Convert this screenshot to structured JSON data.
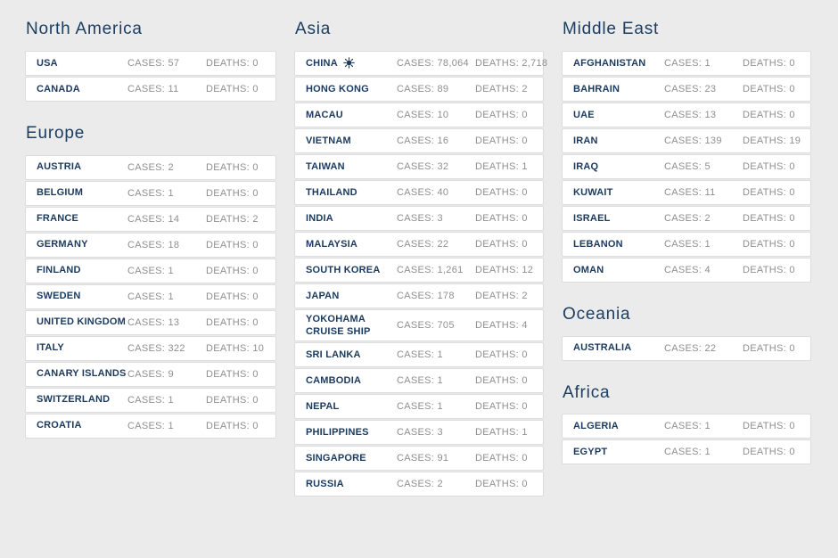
{
  "labels": {
    "cases": "CASES:",
    "deaths": "DEATHS:"
  },
  "colors": {
    "page_bg": "#ebebeb",
    "card_bg": "#ffffff",
    "card_border": "#dcdcdc",
    "navy_text": "#1b3a5e",
    "header_text": "#1d3e61",
    "gray_text": "#8f8f8f"
  },
  "columns": [
    [
      {
        "title": "North America",
        "rows": [
          {
            "name": "USA",
            "cases": "57",
            "deaths": "0"
          },
          {
            "name": "CANADA",
            "cases": "11",
            "deaths": "0"
          }
        ]
      },
      {
        "title": "Europe",
        "rows": [
          {
            "name": "AUSTRIA",
            "cases": "2",
            "deaths": "0"
          },
          {
            "name": "BELGIUM",
            "cases": "1",
            "deaths": "0"
          },
          {
            "name": "FRANCE",
            "cases": "14",
            "deaths": "2"
          },
          {
            "name": "GERMANY",
            "cases": "18",
            "deaths": "0"
          },
          {
            "name": "FINLAND",
            "cases": "1",
            "deaths": "0"
          },
          {
            "name": "SWEDEN",
            "cases": "1",
            "deaths": "0"
          },
          {
            "name": "UNITED KINGDOM",
            "cases": "13",
            "deaths": "0"
          },
          {
            "name": "ITALY",
            "cases": "322",
            "deaths": "10"
          },
          {
            "name": "CANARY ISLANDS",
            "cases": "9",
            "deaths": "0"
          },
          {
            "name": "SWITZERLAND",
            "cases": "1",
            "deaths": "0"
          },
          {
            "name": "CROATIA",
            "cases": "1",
            "deaths": "0"
          }
        ]
      }
    ],
    [
      {
        "title": "Asia",
        "rows": [
          {
            "name": "CHINA",
            "icon": "virus-icon",
            "cases": "78,064",
            "deaths": "2,718"
          },
          {
            "name": "HONG KONG",
            "cases": "89",
            "deaths": "2"
          },
          {
            "name": "MACAU",
            "cases": "10",
            "deaths": "0"
          },
          {
            "name": "VIETNAM",
            "cases": "16",
            "deaths": "0"
          },
          {
            "name": "TAIWAN",
            "cases": "32",
            "deaths": "1"
          },
          {
            "name": "THAILAND",
            "cases": "40",
            "deaths": "0"
          },
          {
            "name": "INDIA",
            "cases": "3",
            "deaths": "0"
          },
          {
            "name": "MALAYSIA",
            "cases": "22",
            "deaths": "0"
          },
          {
            "name": "SOUTH KOREA",
            "cases": "1,261",
            "deaths": "12"
          },
          {
            "name": "JAPAN",
            "cases": "178",
            "deaths": "2"
          },
          {
            "name": "YOKOHAMA CRUISE SHIP",
            "cases": "705",
            "deaths": "4"
          },
          {
            "name": "SRI LANKA",
            "cases": "1",
            "deaths": "0"
          },
          {
            "name": "CAMBODIA",
            "cases": "1",
            "deaths": "0"
          },
          {
            "name": "NEPAL",
            "cases": "1",
            "deaths": "0"
          },
          {
            "name": "PHILIPPINES",
            "cases": "3",
            "deaths": "1"
          },
          {
            "name": "SINGAPORE",
            "cases": "91",
            "deaths": "0"
          },
          {
            "name": "RUSSIA",
            "cases": "2",
            "deaths": "0"
          }
        ]
      }
    ],
    [
      {
        "title": "Middle East",
        "rows": [
          {
            "name": "AFGHANISTAN",
            "cases": "1",
            "deaths": "0"
          },
          {
            "name": "BAHRAIN",
            "cases": "23",
            "deaths": "0"
          },
          {
            "name": "UAE",
            "cases": "13",
            "deaths": "0"
          },
          {
            "name": "IRAN",
            "cases": "139",
            "deaths": "19"
          },
          {
            "name": "IRAQ",
            "cases": "5",
            "deaths": "0"
          },
          {
            "name": "KUWAIT",
            "cases": "11",
            "deaths": "0"
          },
          {
            "name": "ISRAEL",
            "cases": "2",
            "deaths": "0"
          },
          {
            "name": "LEBANON",
            "cases": "1",
            "deaths": "0"
          },
          {
            "name": "OMAN",
            "cases": "4",
            "deaths": "0"
          }
        ]
      },
      {
        "title": "Oceania",
        "rows": [
          {
            "name": "AUSTRALIA",
            "cases": "22",
            "deaths": "0"
          }
        ]
      },
      {
        "title": "Africa",
        "rows": [
          {
            "name": "ALGERIA",
            "cases": "1",
            "deaths": "0"
          },
          {
            "name": "EGYPT",
            "cases": "1",
            "deaths": "0"
          }
        ]
      }
    ]
  ]
}
